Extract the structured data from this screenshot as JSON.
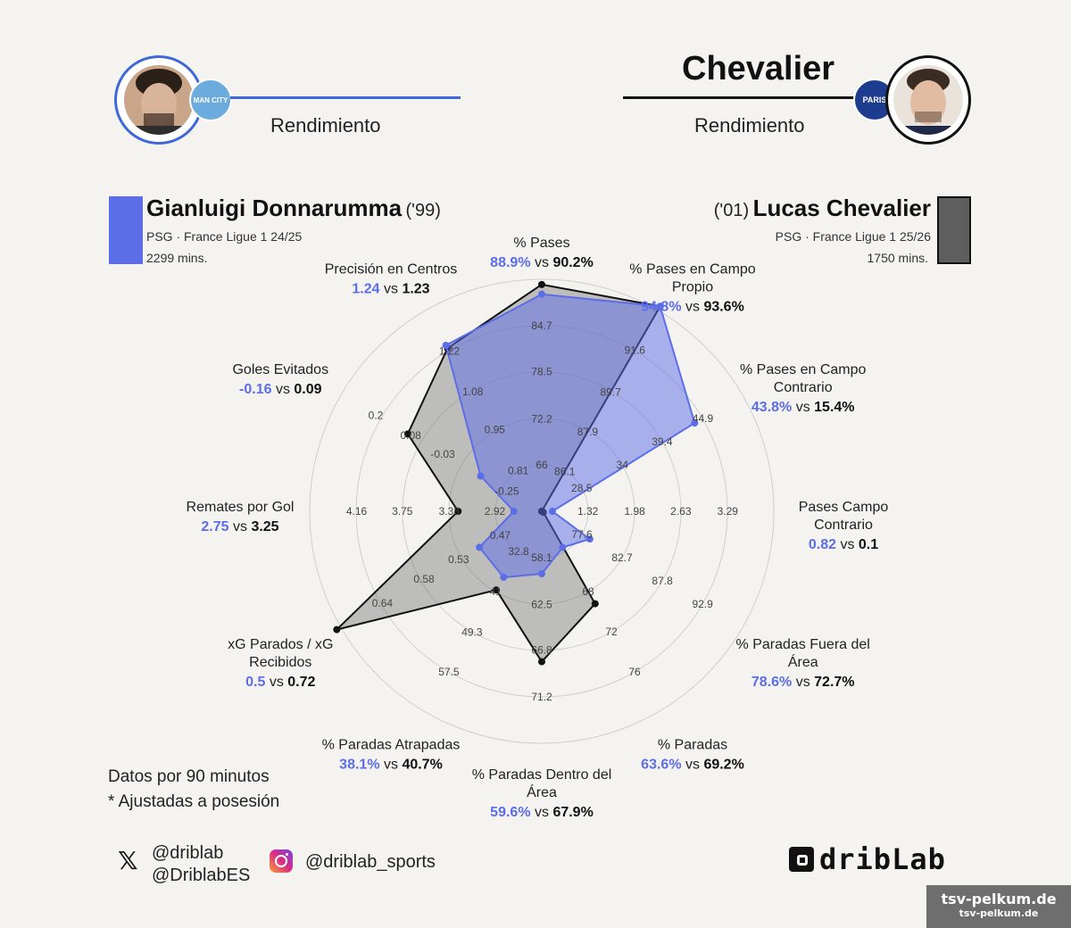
{
  "header": {
    "left": {
      "subtitle": "Rendimiento",
      "club_badge_text": "MAN CITY"
    },
    "right": {
      "title": "Chevalier",
      "subtitle": "Rendimiento",
      "club_badge_text": "PARIS"
    }
  },
  "players": {
    "p1": {
      "name": "Gianluigi Donnarumma",
      "year": "('99)",
      "team": "PSG · France Ligue 1 24/25",
      "mins": "2299 mins.",
      "color": "#5b6ee8"
    },
    "p2": {
      "name": "Lucas Chevalier",
      "year": "('01)",
      "team": "PSG · France Ligue 1 25/26",
      "mins": "1750 mins.",
      "color": "#6b6b6b"
    }
  },
  "chart_data": {
    "type": "radar",
    "axes": [
      {
        "name": "% Pases",
        "label_lines": [
          "% Pases"
        ],
        "v1": "88.9%",
        "v2": "90.2%",
        "ticks": [
          "66",
          "72.2",
          "78.5",
          "84.7"
        ],
        "min": 59.8,
        "max": 90.9,
        "p1": 88.9,
        "p2": 90.2
      },
      {
        "name": "% Pases en Campo Propio",
        "label_lines": [
          "% Pases en Campo",
          "Propio"
        ],
        "v1": "94.8%",
        "v2": "93.6%",
        "ticks": [
          "86.1",
          "87.9",
          "89.7",
          "91.6"
        ],
        "min": 84.3,
        "max": 93.4,
        "p1": 94.8,
        "p2": 93.6
      },
      {
        "name": "% Pases en Campo Contrario",
        "label_lines": [
          "% Pases en Campo",
          "Contrario"
        ],
        "v1": "43.8%",
        "v2": "15.4%",
        "ticks": [
          "28.5",
          "34",
          "39.4",
          "44.9"
        ],
        "min": 23.1,
        "max": 50.3,
        "p1": 43.8,
        "p2": 15.4
      },
      {
        "name": "Pases Campo Contrario",
        "label_lines": [
          "Pases Campo",
          "Contrario"
        ],
        "v1": "0.82",
        "v2": "0.1",
        "ticks": [
          "1.32",
          "1.98",
          "2.63",
          "3.29"
        ],
        "min": 0.67,
        "max": 3.94,
        "p1": 0.82,
        "p2": 0.1
      },
      {
        "name": "% Paradas Fuera del Área",
        "label_lines": [
          "% Paradas Fuera del",
          "Área"
        ],
        "v1": "78.6%",
        "v2": "72.7%",
        "ticks": [
          "77.6",
          "82.7",
          "87.8",
          "92.9"
        ],
        "min": 72.5,
        "max": 98,
        "p1": 78.6,
        "p2": 72.7
      },
      {
        "name": "% Paradas",
        "label_lines": [
          "% Paradas"
        ],
        "v1": "63.6%",
        "v2": "69.2%",
        "ticks": [
          "68",
          "72",
          "76"
        ],
        "min": 60,
        "max": 80,
        "p1": 63.6,
        "p2": 69.2
      },
      {
        "name": "% Paradas Dentro del Área",
        "label_lines": [
          "% Paradas Dentro del",
          "Área"
        ],
        "v1": "59.6%",
        "v2": "67.9%",
        "ticks": [
          "58.1",
          "62.5",
          "66.8",
          "71.2"
        ],
        "min": 53.7,
        "max": 75.6,
        "p1": 59.6,
        "p2": 67.9
      },
      {
        "name": "% Paradas Atrapadas",
        "label_lines": [
          "% Paradas Atrapadas"
        ],
        "v1": "38.1%",
        "v2": "40.7%",
        "ticks": [
          "32.8",
          "41",
          "49.3",
          "57.5"
        ],
        "min": 24.6,
        "max": 65.7,
        "p1": 38.1,
        "p2": 40.7
      },
      {
        "name": "xG Parados / xG Recibidos",
        "label_lines": [
          "xG Parados / xG",
          "Recibidos"
        ],
        "v1": "0.5",
        "v2": "0.72",
        "ticks": [
          "0.47",
          "0.53",
          "0.58",
          "0.64"
        ],
        "min": 0.41,
        "max": 0.7,
        "p1": 0.5,
        "p2": 0.72
      },
      {
        "name": "Remates por Gol",
        "label_lines": [
          "Remates por Gol"
        ],
        "v1": "2.75",
        "v2": "3.25",
        "ticks": [
          "2.92",
          "3.33",
          "3.75",
          "4.16"
        ],
        "min": 2.5,
        "max": 4.58,
        "p1": 2.75,
        "p2": 3.25
      },
      {
        "name": "Goles Evitados",
        "label_lines": [
          "Goles Evitados"
        ],
        "v1": "-0.16",
        "v2": "0.09",
        "ticks": [
          "-0.25",
          "-0.03",
          "0.08",
          "0.2"
        ],
        "min": -0.37,
        "max": 0.32,
        "p1": -0.16,
        "p2": 0.09
      },
      {
        "name": "Precisión en Centros",
        "label_lines": [
          "Precisión en Centros"
        ],
        "v1": "1.24",
        "v2": "1.23",
        "ticks": [
          "0.81",
          "0.95",
          "1.08",
          "1.22"
        ],
        "min": 0.67,
        "max": 1.36,
        "p1": 1.24,
        "p2": 1.23
      }
    ],
    "series": [
      {
        "name": "Gianluigi Donnarumma",
        "color": "#5b6ee8"
      },
      {
        "name": "Lucas Chevalier",
        "color": "#6b6b6b"
      }
    ],
    "vs_text": "vs"
  },
  "footer": {
    "note1": "Datos por 90 minutos",
    "note2": "* Ajustadas a posesión",
    "twitter1": "@driblab",
    "twitter2": "@DriblabES",
    "instagram": "@driblab_sports",
    "logo_text": "dribLab",
    "watermark1": "tsv-pelkum.de",
    "watermark2": "tsv-pelkum.de"
  }
}
